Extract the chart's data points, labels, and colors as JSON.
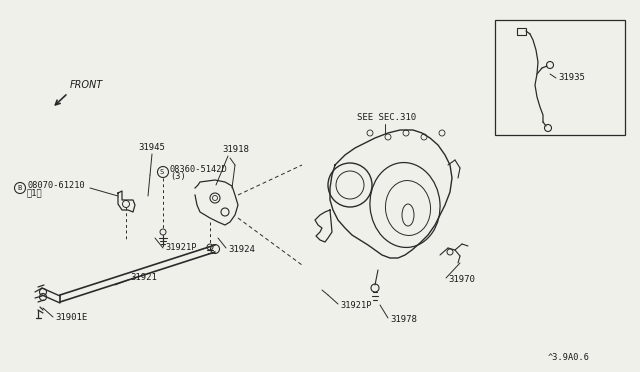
{
  "bg_color": "#f0f0eb",
  "line_color": "#2a2a2a",
  "text_color": "#1a1a1a",
  "diagram_code": "^3.9A0.6",
  "labels": {
    "front_arrow": "FRONT",
    "see_sec": "SEE SEC.310",
    "part_31918": "31918",
    "part_31945": "31945",
    "part_08360": "©08360-5142D\n(3)",
    "part_08070": "®08070-61210\n〈1）",
    "part_31921P_left": "31921P",
    "part_31924": "31924",
    "part_31921": "31921",
    "part_31901E": "31901E",
    "part_31921P_right": "31921P",
    "part_31970": "31970",
    "part_31978": "31978",
    "part_31935": "31935"
  }
}
